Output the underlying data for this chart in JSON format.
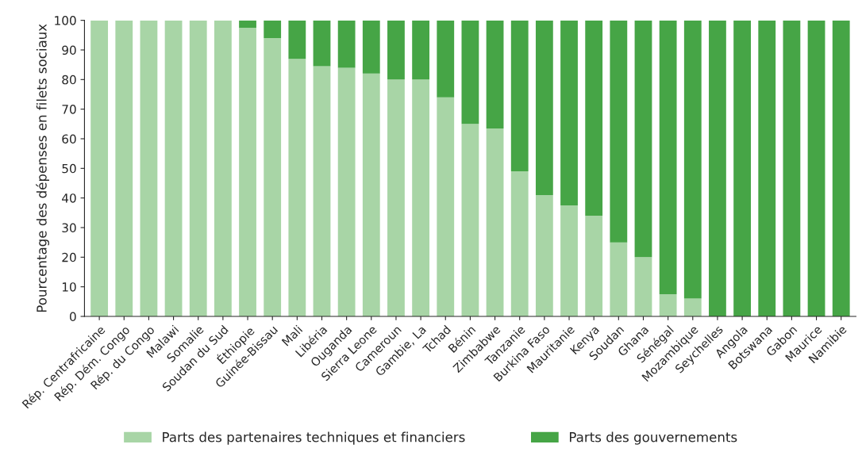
{
  "chart_data": {
    "type": "bar",
    "stacked": true,
    "ylabel": "Pourcentage des dépenses en filets sociaux",
    "categories": [
      "Rép. Centrafricaine",
      "Rép. Dém. Congo",
      "Rép. du Congo",
      "Malawi",
      "Somalie",
      "Soudan du Sud",
      "Éthiopie",
      "Guinée-Bissau",
      "Mali",
      "Libéria",
      "Ouganda",
      "Sierra Leone",
      "Cameroun",
      "Gambie, La",
      "Tchad",
      "Bénin",
      "Zimbabwe",
      "Tanzanie",
      "Burkina Faso",
      "Mauritanie",
      "Kenya",
      "Soudan",
      "Ghana",
      "Sénégal",
      "Mozambique",
      "Seychelles",
      "Angola",
      "Botswana",
      "Gabon",
      "Maurice",
      "Namibie"
    ],
    "series": [
      {
        "name": "Parts des partenaires techniques et financiers",
        "color": "#a8d5a6",
        "values": [
          100,
          100,
          100,
          100,
          100,
          100,
          97.5,
          94,
          87,
          84.5,
          84,
          82,
          80,
          80,
          74,
          65,
          63.5,
          49,
          41,
          37.5,
          34,
          25,
          20,
          7.5,
          6,
          0,
          0,
          0,
          0,
          0,
          0
        ]
      },
      {
        "name": "Parts des gouvernements",
        "color": "#46a546",
        "values": [
          0,
          0,
          0,
          0,
          0,
          0,
          2.5,
          6,
          13,
          15.5,
          16,
          18,
          20,
          20,
          26,
          35,
          36.5,
          51,
          59,
          62.5,
          66,
          75,
          80,
          92.5,
          94,
          100,
          100,
          100,
          100,
          100,
          100
        ]
      }
    ],
    "ylim": [
      0,
      100
    ],
    "yticks": [
      0,
      10,
      20,
      30,
      40,
      50,
      60,
      70,
      80,
      90,
      100
    ],
    "grid": false,
    "legend": "bottom"
  }
}
